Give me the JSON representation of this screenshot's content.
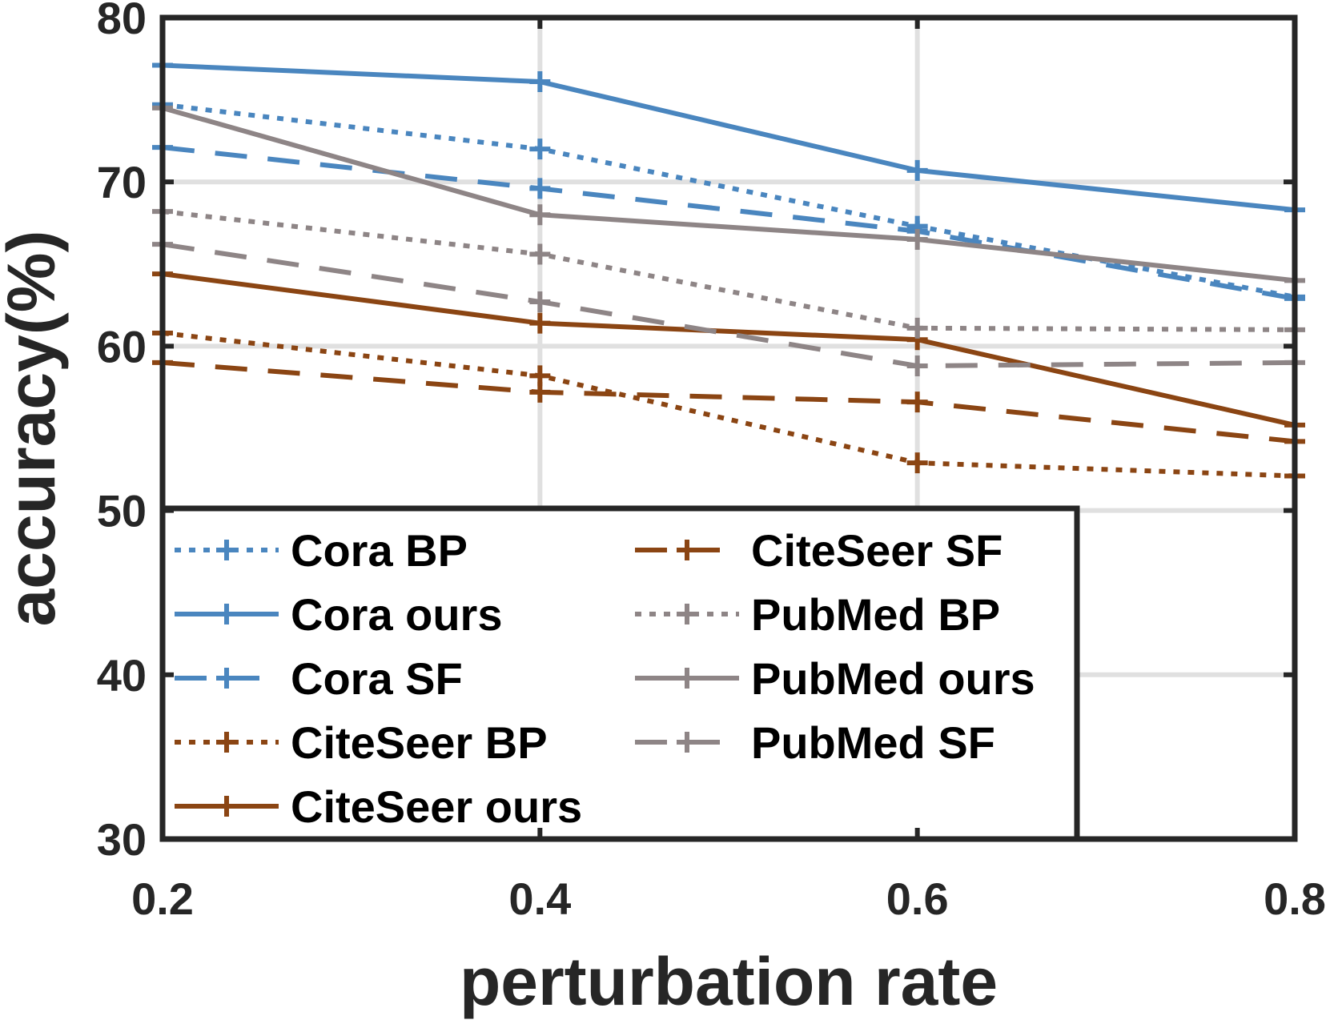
{
  "chart_data": {
    "type": "line",
    "title": "",
    "xlabel": "perturbation rate",
    "ylabel": "accuracy(%)",
    "x": [
      0.2,
      0.4,
      0.6,
      0.8
    ],
    "x_tick_labels": [
      "0.2",
      "0.4",
      "0.6",
      "0.8"
    ],
    "xlim": [
      0.2,
      0.8
    ],
    "ylim": [
      30,
      80
    ],
    "y_ticks": [
      30,
      40,
      50,
      60,
      70,
      80
    ],
    "y_tick_labels": [
      "30",
      "40",
      "50",
      "60",
      "70",
      "80"
    ],
    "grid": true,
    "legend_position": "bottom-left",
    "series": [
      {
        "name": "Cora BP",
        "color": "#4A86BF",
        "style": "dotted",
        "values": [
          74.7,
          72.0,
          67.3,
          63.0
        ]
      },
      {
        "name": "Cora ours",
        "color": "#4A86BF",
        "style": "solid",
        "values": [
          77.1,
          76.1,
          70.7,
          68.3
        ]
      },
      {
        "name": "Cora SF",
        "color": "#4A86BF",
        "style": "dashed",
        "values": [
          72.1,
          69.6,
          67.0,
          62.9
        ]
      },
      {
        "name": "CiteSeer BP",
        "color": "#8B4513",
        "style": "dotted",
        "values": [
          60.8,
          58.2,
          52.9,
          52.1
        ]
      },
      {
        "name": "CiteSeer ours",
        "color": "#8B4513",
        "style": "solid",
        "values": [
          64.4,
          61.4,
          60.4,
          55.2
        ]
      },
      {
        "name": "CiteSeer SF",
        "color": "#8B4513",
        "style": "dashed",
        "values": [
          59.0,
          57.2,
          56.6,
          54.2
        ]
      },
      {
        "name": "PubMed BP",
        "color": "#8E8586",
        "style": "dotted",
        "values": [
          68.2,
          65.6,
          61.1,
          61.0
        ]
      },
      {
        "name": "PubMed ours",
        "color": "#8E8586",
        "style": "solid",
        "values": [
          74.5,
          68.0,
          66.5,
          64.0
        ]
      },
      {
        "name": "PubMed SF",
        "color": "#8E8586",
        "style": "dashed",
        "values": [
          66.2,
          62.7,
          58.8,
          59.0
        ]
      }
    ]
  }
}
